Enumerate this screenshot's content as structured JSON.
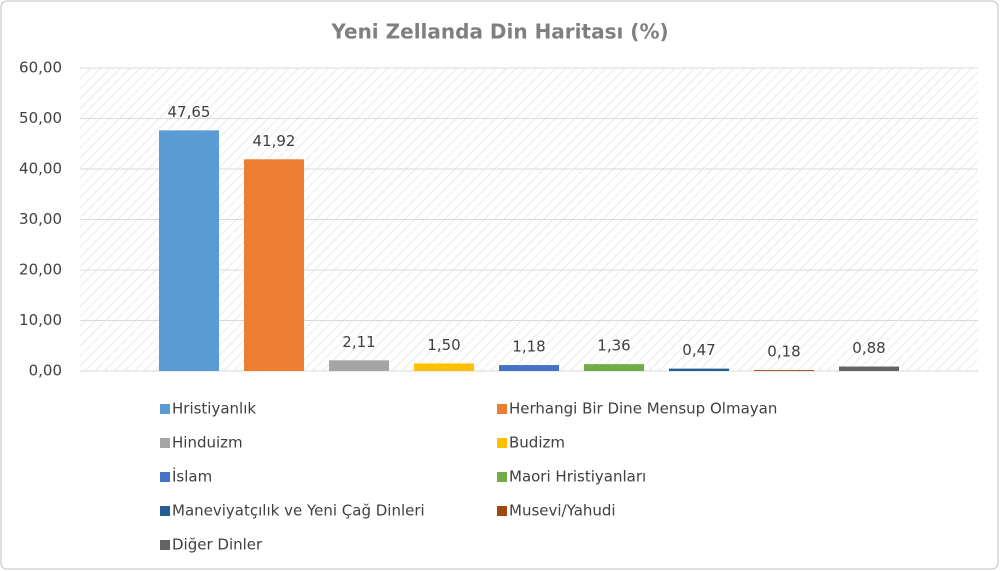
{
  "chart_data": {
    "type": "bar",
    "title": "Yeni Zellanda Din Haritası (%)",
    "categories": [
      null
    ],
    "series": [
      {
        "name": "Hristiyanlık",
        "color": "#5b9bd5",
        "values": [
          47.65
        ],
        "value_labels": [
          "47,65"
        ]
      },
      {
        "name": "Herhangi Bir Dine Mensup Olmayan",
        "color": "#ed7d31",
        "values": [
          41.92
        ],
        "value_labels": [
          "41,92"
        ]
      },
      {
        "name": "Hinduizm",
        "color": "#a5a5a5",
        "values": [
          2.11
        ],
        "value_labels": [
          "2,11"
        ]
      },
      {
        "name": "Budizm",
        "color": "#ffc000",
        "values": [
          1.5
        ],
        "value_labels": [
          "1,50"
        ]
      },
      {
        "name": "İslam",
        "color": "#4472c4",
        "values": [
          1.18
        ],
        "value_labels": [
          "1,18"
        ]
      },
      {
        "name": "Maori Hristiyanları",
        "color": "#70ad47",
        "values": [
          1.36
        ],
        "value_labels": [
          "1,36"
        ]
      },
      {
        "name": "Maneviyatçılık ve Yeni Çağ Dinleri",
        "color": "#255e91",
        "values": [
          0.47
        ],
        "value_labels": [
          "0,47"
        ]
      },
      {
        "name": "Musevi/Yahudi",
        "color": "#9e480e",
        "values": [
          0.18
        ],
        "value_labels": [
          "0,18"
        ]
      },
      {
        "name": "Diğer Dinler",
        "color": "#636363",
        "values": [
          0.88
        ],
        "value_labels": [
          "0,88"
        ]
      }
    ],
    "ylim": [
      0,
      60
    ],
    "yticks": [
      {
        "value": 0,
        "label": "0,00"
      },
      {
        "value": 10,
        "label": "10,00"
      },
      {
        "value": 20,
        "label": "20,00"
      },
      {
        "value": 30,
        "label": "30,00"
      },
      {
        "value": 40,
        "label": "40,00"
      },
      {
        "value": 50,
        "label": "50,00"
      },
      {
        "value": 60,
        "label": "60,00"
      }
    ],
    "grid": true,
    "legend": "bottom"
  }
}
